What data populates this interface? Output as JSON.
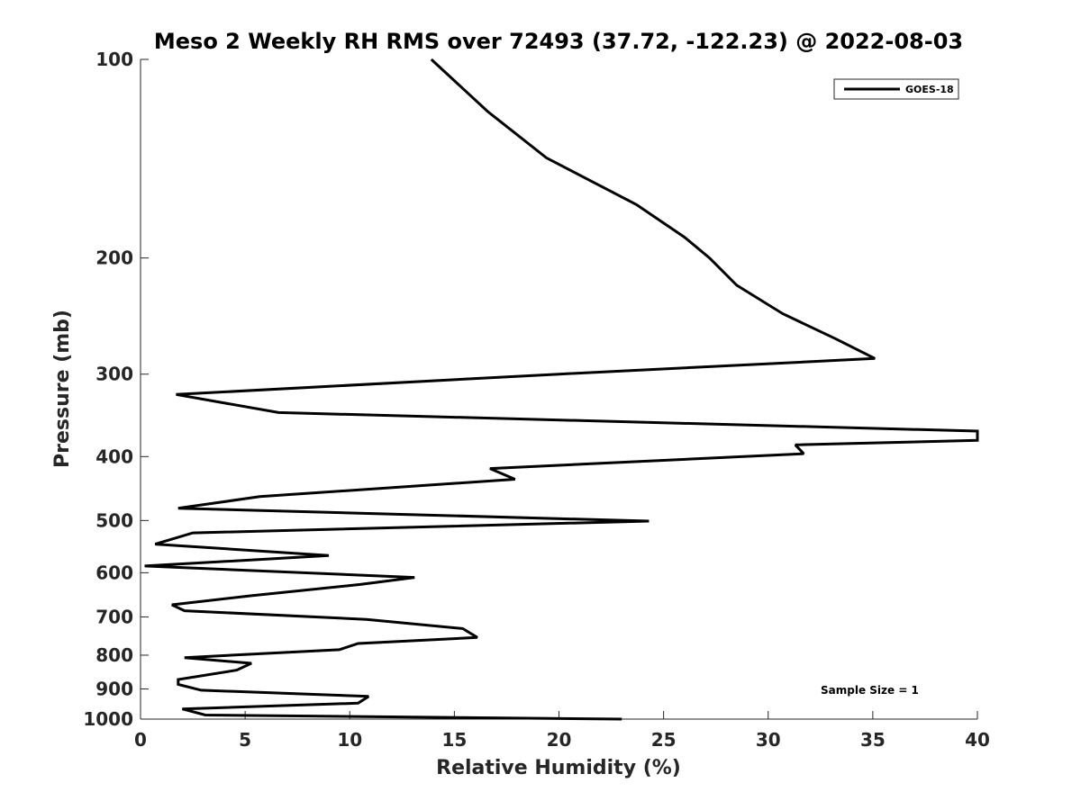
{
  "chart_data": {
    "type": "line",
    "title": "Meso 2 Weekly RH RMS over 72493 (37.72, -122.23) @ 2022-08-03",
    "xlabel": "Relative Humidity (%)",
    "ylabel": "Pressure (mb)",
    "xlim": [
      0,
      40
    ],
    "ylim": [
      100,
      1000
    ],
    "y_scale": "log",
    "y_reversed": true,
    "x_ticks": [
      0,
      5,
      10,
      15,
      20,
      25,
      30,
      35,
      40
    ],
    "y_ticks": [
      100,
      200,
      300,
      400,
      500,
      600,
      700,
      800,
      900,
      1000
    ],
    "grid": false,
    "legend": {
      "position": "top-right",
      "entries": [
        "GOES-18"
      ]
    },
    "annotations": [
      "Sample Size = 1"
    ],
    "series": [
      {
        "name": "GOES-18",
        "color": "#000000",
        "x": [
          13.9,
          16.6,
          19.4,
          23.7,
          26.0,
          27.2,
          28.5,
          30.7,
          33.2,
          35.1,
          20.0,
          1.7,
          6.6,
          40.0,
          40.0,
          31.3,
          31.7,
          16.7,
          17.9,
          5.7,
          1.8,
          24.3,
          2.5,
          0.7,
          9.0,
          0.2,
          13.1,
          10.5,
          5.3,
          1.5,
          2.1,
          10.8,
          15.4,
          16.1,
          10.4,
          9.5,
          2.1,
          5.3,
          4.6,
          1.8,
          1.8,
          2.9,
          10.9,
          10.4,
          2.0,
          3.1,
          23.0
        ],
        "y": [
          100,
          120,
          141,
          166,
          186,
          200,
          220,
          243,
          265,
          284,
          300,
          322,
          343,
          366,
          378,
          384,
          396,
          417,
          433,
          460,
          479,
          501,
          522,
          543,
          565,
          586,
          610,
          625,
          650,
          671,
          685,
          706,
          729,
          752,
          768,
          785,
          807,
          823,
          843,
          871,
          886,
          904,
          924,
          946,
          965,
          986,
          1000
        ]
      }
    ]
  }
}
